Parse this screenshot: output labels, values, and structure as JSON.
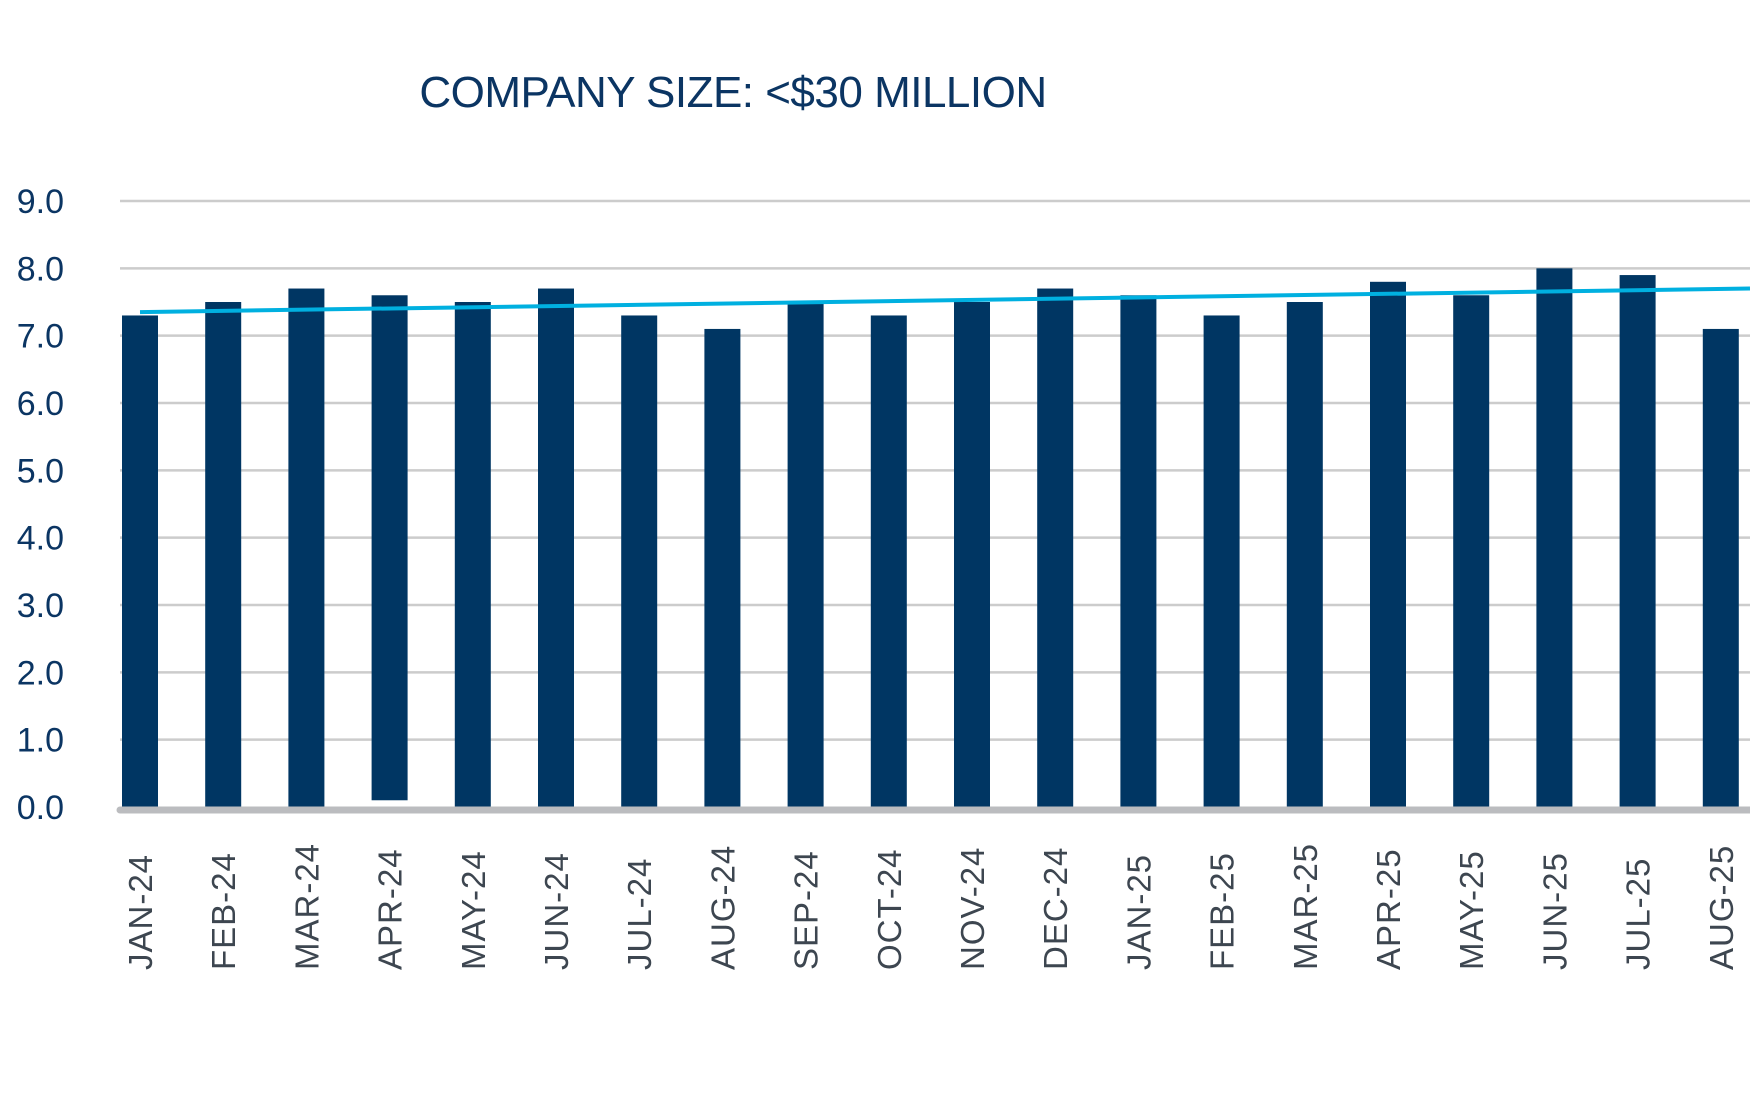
{
  "chart_data": {
    "type": "bar",
    "title": "COMPANY SIZE: <$30 MILLION",
    "xlabel": "",
    "ylabel": "",
    "ylim": [
      0,
      9
    ],
    "yticks": [
      "0.0",
      "1.0",
      "2.0",
      "3.0",
      "4.0",
      "5.0",
      "6.0",
      "7.0",
      "8.0",
      "9.0"
    ],
    "grid": true,
    "legend": "none",
    "categories": [
      "JAN-24",
      "FEB-24",
      "MAR-24",
      "APR-24",
      "MAY-24",
      "JUN-24",
      "JUL-24",
      "AUG-24",
      "SEP-24",
      "OCT-24",
      "NOV-24",
      "DEC-24",
      "JAN-25",
      "FEB-25",
      "MAR-25",
      "APR-25",
      "MAY-25",
      "JUN-25",
      "JUL-25",
      "AUG-25"
    ],
    "series": [
      {
        "name": "value",
        "type": "bar",
        "color": "#003663",
        "values": [
          7.3,
          7.5,
          7.7,
          7.6,
          7.5,
          7.7,
          7.3,
          7.1,
          7.5,
          7.3,
          7.5,
          7.7,
          7.6,
          7.3,
          7.5,
          7.8,
          7.6,
          8.0,
          7.9,
          7.1
        ],
        "bases": [
          0,
          0,
          0,
          0.1,
          0,
          0,
          0,
          0,
          0,
          0,
          0,
          0,
          0,
          0,
          0,
          0,
          0,
          0,
          0,
          0
        ]
      },
      {
        "name": "trend",
        "type": "line",
        "color": "#00b0e0",
        "start": 7.35,
        "end": 7.7
      }
    ],
    "colors": {
      "bar": "#003663",
      "trend": "#00b0e0",
      "grid": "#cccccc",
      "axis": "#bbbcbf",
      "title": "#0b3563",
      "ytick": "#0b3563",
      "xtick": "#3d4650"
    }
  }
}
